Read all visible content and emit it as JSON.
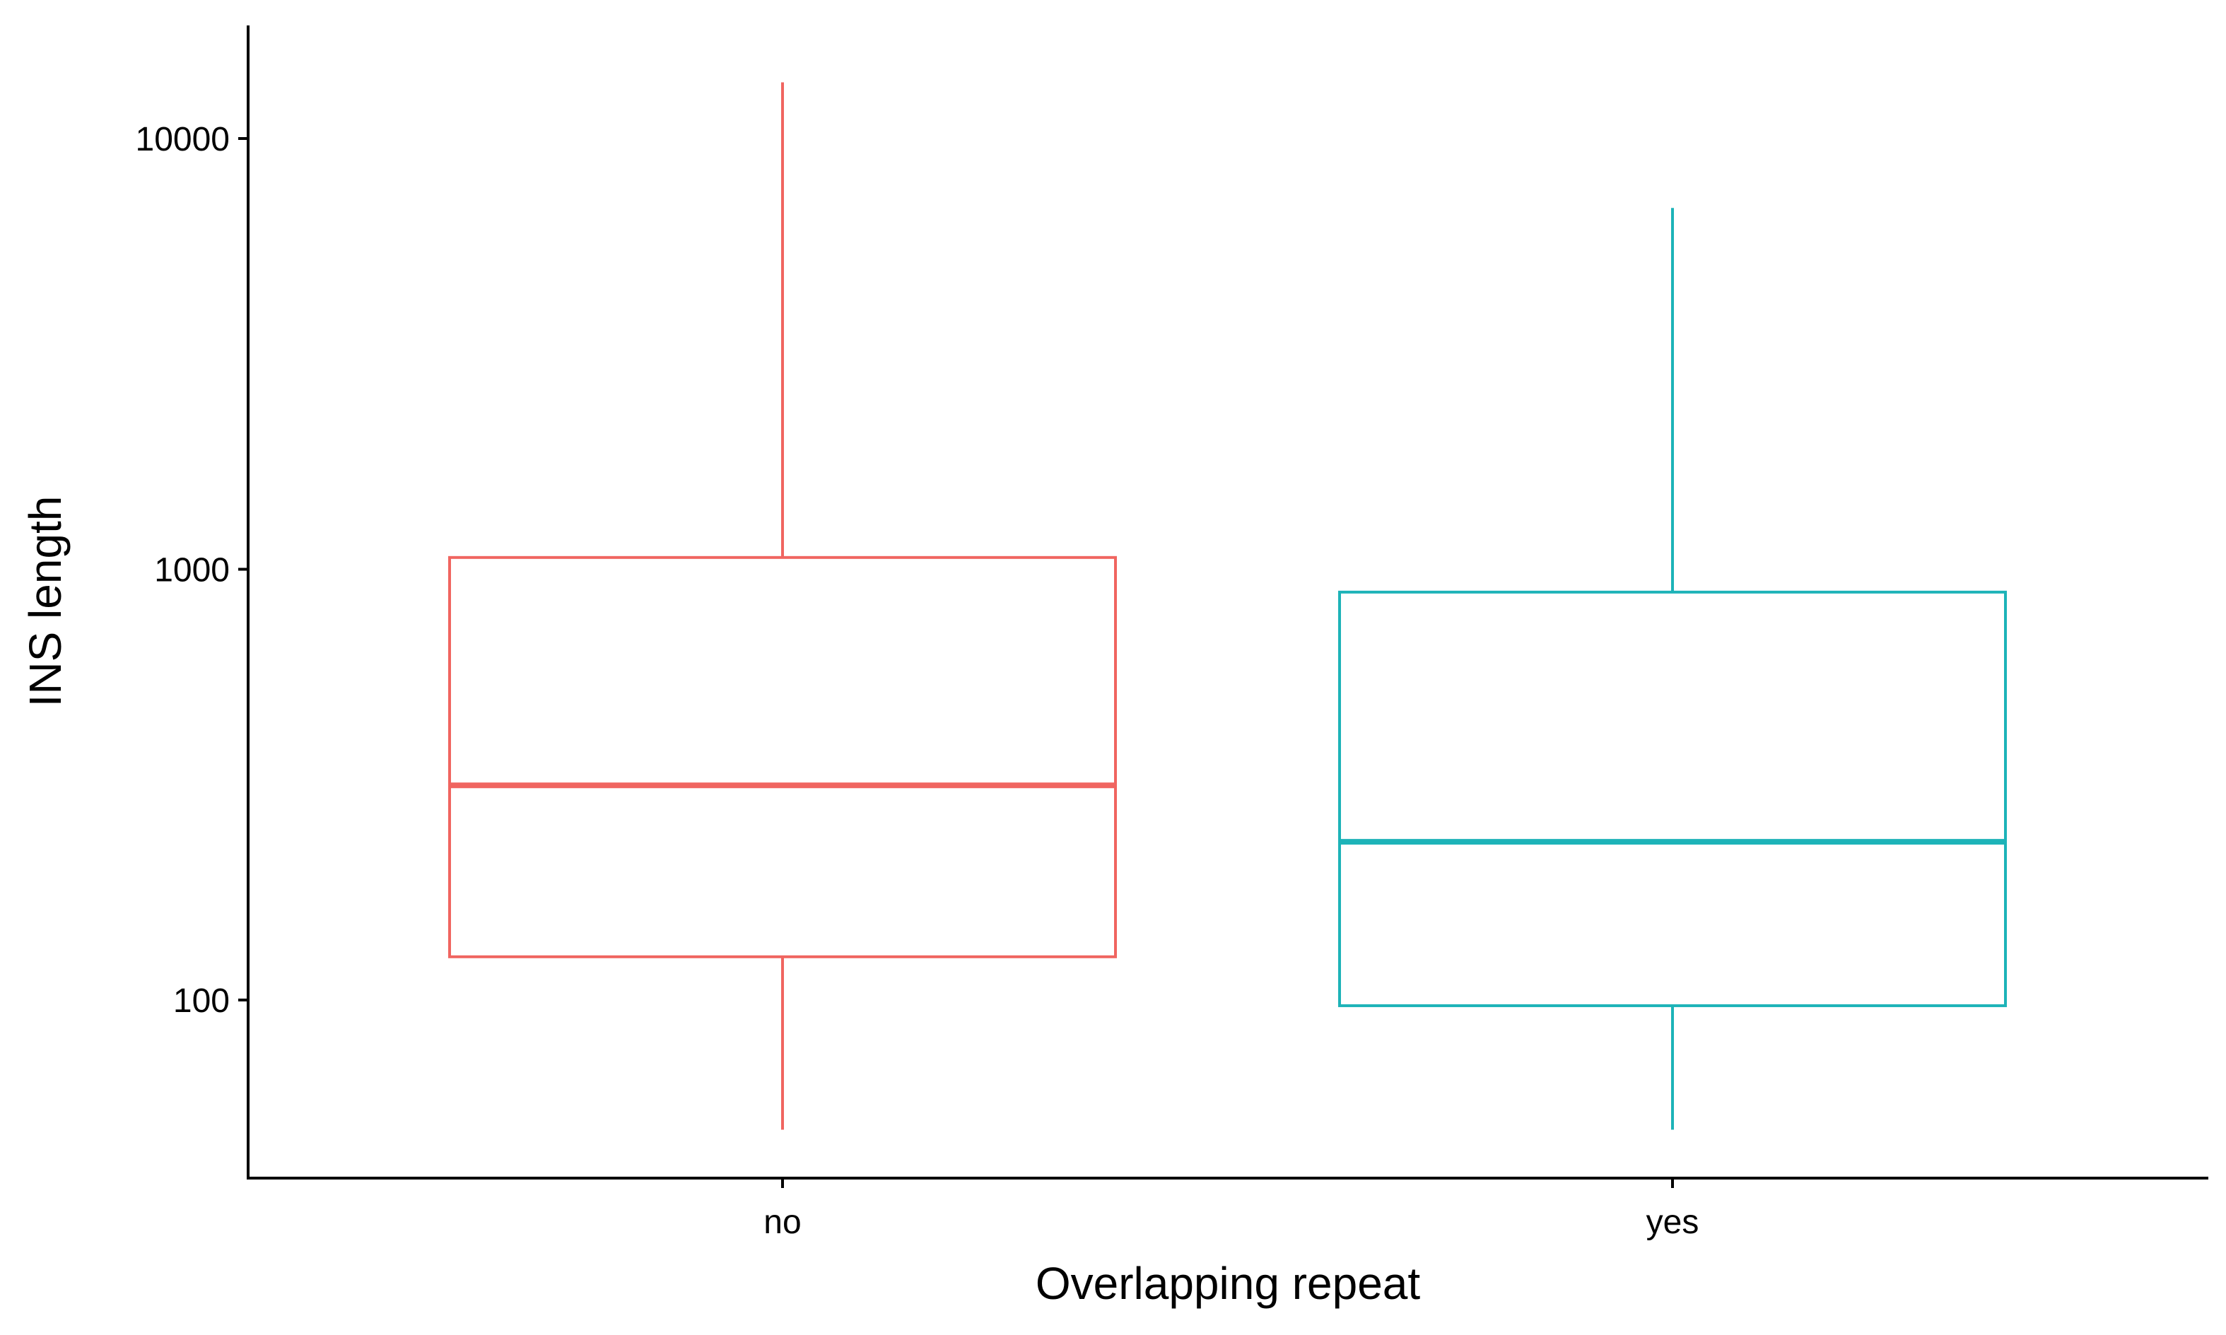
{
  "chart_data": {
    "type": "boxplot",
    "title": "",
    "xlabel": "Overlapping repeat",
    "ylabel": "INS length",
    "y_scale": "log10",
    "ylim": [
      38,
      17000
    ],
    "y_ticks": [
      100,
      1000,
      10000
    ],
    "y_tick_labels": [
      "100",
      "1000",
      "10000"
    ],
    "grid": false,
    "legend": "none",
    "categories": [
      "no",
      "yes"
    ],
    "boxes": [
      {
        "category": "no",
        "color": "#F06560",
        "whisker_low": 50,
        "q1": 126,
        "median": 315,
        "q3": 1065,
        "whisker_high": 13500
      },
      {
        "category": "yes",
        "color": "#1DB3B8",
        "whisker_low": 50,
        "q1": 97,
        "median": 233,
        "q3": 885,
        "whisker_high": 6900
      }
    ]
  }
}
